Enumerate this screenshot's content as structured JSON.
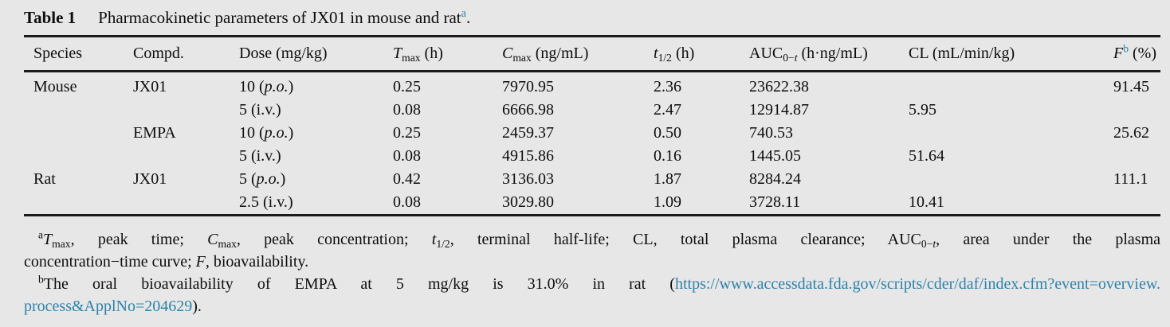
{
  "colors": {
    "background": "#e7e7e7",
    "text": "#0d0d0d",
    "rule": "#1b1b1b",
    "accent_blue": "#2e82aa"
  },
  "title": {
    "label": "Table 1",
    "text": "Pharmacokinetic parameters of JX01 in mouse and rat",
    "footnote_marker": "a",
    "period": "."
  },
  "header": {
    "species": "Species",
    "compound": "Compd.",
    "dose": "Dose (mg/kg)",
    "tmax": {
      "sym": "T",
      "sub": "max",
      "unit": " (h)"
    },
    "cmax": {
      "sym": "C",
      "sub": "max",
      "unit": " (ng/mL)"
    },
    "thalf": {
      "sym": "t",
      "sub": "1/2",
      "unit": " (h)"
    },
    "auc": {
      "sym": "AUC",
      "sub0": "0−",
      "subt": "t",
      "unit": " (h·ng/mL)"
    },
    "cl": "CL (mL/min/kg)",
    "f": {
      "sym": "F",
      "sup": "b",
      "unit": " (%)"
    }
  },
  "rows": [
    {
      "species": "Mouse",
      "compound": "JX01",
      "dose_value": "10",
      "dose_route": "p.o.",
      "route_italic": true,
      "tmax": "0.25",
      "cmax": "7970.95",
      "thalf": "2.36",
      "auc": "23622.38",
      "cl": "",
      "f": "91.45"
    },
    {
      "species": "",
      "compound": "",
      "dose_value": "5",
      "dose_route": "i.v.",
      "route_italic": false,
      "tmax": "0.08",
      "cmax": "6666.98",
      "thalf": "2.47",
      "auc": "12914.87",
      "cl": "5.95",
      "f": ""
    },
    {
      "species": "",
      "compound": "EMPA",
      "dose_value": "10",
      "dose_route": "p.o.",
      "route_italic": true,
      "tmax": "0.25",
      "cmax": "2459.37",
      "thalf": "0.50",
      "auc": "740.53",
      "cl": "",
      "f": "25.62"
    },
    {
      "species": "",
      "compound": "",
      "dose_value": "5",
      "dose_route": "i.v.",
      "route_italic": false,
      "tmax": "0.08",
      "cmax": "4915.86",
      "thalf": "0.16",
      "auc": "1445.05",
      "cl": "51.64",
      "f": ""
    },
    {
      "species": "Rat",
      "compound": "JX01",
      "dose_value": "5",
      "dose_route": "p.o.",
      "route_italic": true,
      "tmax": "0.42",
      "cmax": "3136.03",
      "thalf": "1.87",
      "auc": "8284.24",
      "cl": "",
      "f": "111.1"
    },
    {
      "species": "",
      "compound": "",
      "dose_value": "2.5",
      "dose_route": "i.v.",
      "route_italic": false,
      "tmax": "0.08",
      "cmax": "3029.80",
      "thalf": "1.09",
      "auc": "3728.11",
      "cl": "10.41",
      "f": ""
    }
  ],
  "footnote_a": {
    "marker": "a",
    "t_sym": "T",
    "t_sub": "max",
    "seg1": ", peak time; ",
    "c_sym": "C",
    "c_sub": "max",
    "seg2": ", peak concentration; ",
    "th_sym": "t",
    "th_sub": "1/2",
    "seg3": ", terminal half-life; CL, total plasma clearance; AUC",
    "auc_sub0": "0−",
    "auc_subt": "t",
    "seg4": ", area under the plasma",
    "line2_pre": "concentration−time curve; ",
    "f_sym": "F",
    "line2_post": ", bioavailability."
  },
  "footnote_b": {
    "marker": "b",
    "pre": "The oral bioavailability of EMPA at 5 mg/kg is 31.0% in rat (",
    "url_line1": "https://www.accessdata.fda.gov/scripts/cder/daf/index.cfm?event=overview.",
    "url_line2": "process&ApplNo=204629",
    "post": ")."
  }
}
